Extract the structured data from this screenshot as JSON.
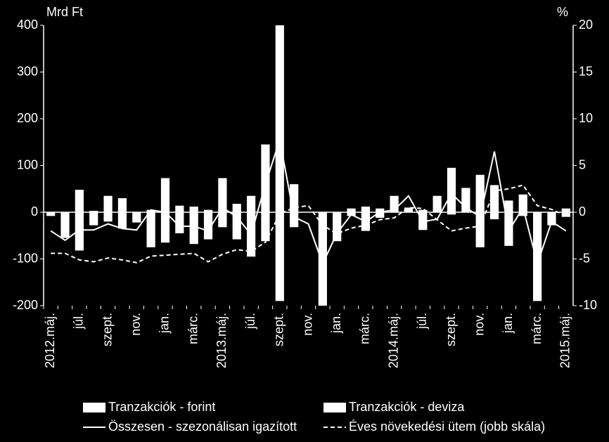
{
  "chart_data": {
    "type": "bar-line",
    "y_label": "Mrd Ft",
    "y2_label": "%",
    "categories": [
      "2012.máj.",
      null,
      "júl.",
      null,
      "szept.",
      null,
      "nov.",
      null,
      "jan.",
      null,
      "márc.",
      null,
      "2013.máj.",
      null,
      "júl.",
      null,
      "szept.",
      null,
      "nov.",
      null,
      "jan.",
      null,
      "márc.",
      null,
      "2014.máj.",
      null,
      "júl.",
      null,
      "szept.",
      null,
      "nov.",
      null,
      "jan.",
      null,
      "márc.",
      null,
      "2015.máj."
    ],
    "series": [
      {
        "name": "Tranzakciók - forint",
        "type": "bar",
        "color": "#ffffff",
        "values": [
          0,
          -55,
          48,
          3,
          35,
          30,
          0,
          5,
          73,
          14,
          12,
          5,
          73,
          18,
          35,
          145,
          400,
          60,
          0,
          0,
          0,
          8,
          12,
          8,
          35,
          10,
          5,
          35,
          95,
          52,
          80,
          58,
          25,
          38,
          0,
          0,
          8
        ]
      },
      {
        "name": "Tranzakciók - deviza",
        "type": "bar",
        "color": "#ffffff",
        "values": [
          -8,
          0,
          -82,
          -28,
          -20,
          -35,
          -22,
          -75,
          -65,
          -45,
          -68,
          -58,
          -32,
          -58,
          -95,
          -62,
          -190,
          -32,
          0,
          -200,
          -62,
          -8,
          -40,
          -12,
          0,
          0,
          -38,
          0,
          -5,
          0,
          -75,
          -15,
          -72,
          -8,
          -190,
          -28,
          -10
        ]
      },
      {
        "name": "Összesen - szezonálisan igazított",
        "type": "line",
        "color": "#ffffff",
        "values": [
          -40,
          -60,
          -38,
          -38,
          -25,
          -35,
          -38,
          5,
          0,
          -30,
          -30,
          -40,
          10,
          -10,
          -48,
          60,
          155,
          -10,
          -25,
          -110,
          -45,
          -5,
          -20,
          0,
          5,
          35,
          -20,
          -15,
          40,
          10,
          -10,
          130,
          -40,
          10,
          -110,
          -20,
          -40
        ]
      },
      {
        "name": "Éves növekedési ütem (jobb skála)",
        "type": "line",
        "color": "#ffffff",
        "dashed": true,
        "axis": "y2",
        "values": [
          -4.4,
          -4.4,
          -5.1,
          -5.3,
          -4.9,
          -5.1,
          -5.4,
          -4.7,
          -4.6,
          -4.5,
          -4.4,
          -5.3,
          -4.5,
          -4,
          -4.2,
          -3.2,
          -0.2,
          0.5,
          0.7,
          -1.4,
          -2.3,
          -1.7,
          -1.4,
          -0.8,
          -0.6,
          0.5,
          0.4,
          -0.8,
          -2,
          -1.7,
          -1.5,
          2.3,
          2.5,
          2.9,
          0.7,
          0.3,
          -0.4
        ]
      }
    ],
    "ylim": [
      -200,
      400
    ],
    "yticks": [
      -200,
      -100,
      0,
      100,
      200,
      300,
      400
    ],
    "y2lim": [
      -10,
      20
    ],
    "y2ticks": [
      -10,
      -5,
      0,
      5,
      10,
      15,
      20
    ]
  }
}
